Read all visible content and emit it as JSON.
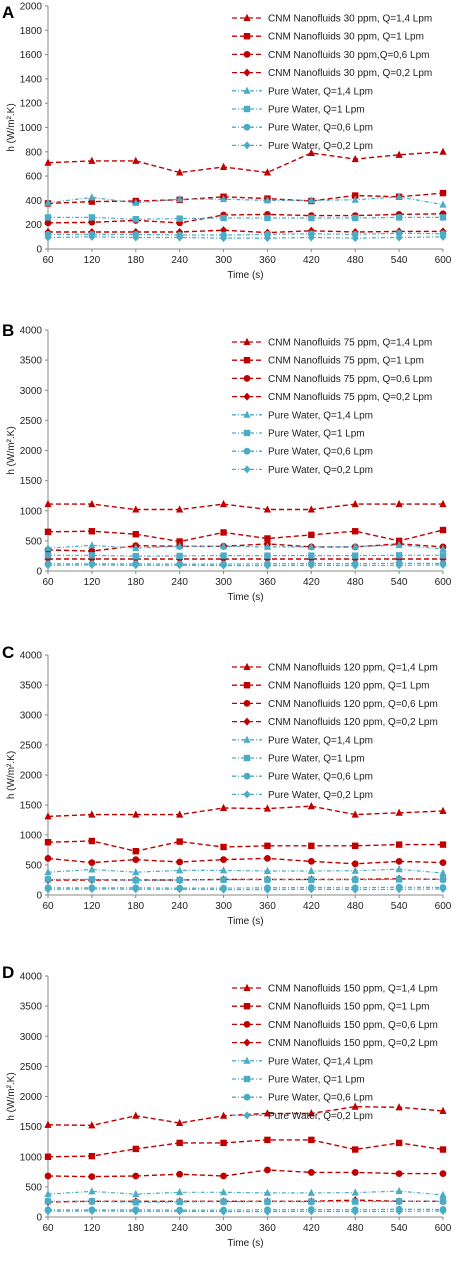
{
  "figure": {
    "colors": {
      "cnm": "#c00000",
      "water": "#4bacc6"
    }
  },
  "chart_data": [
    {
      "panel": "A",
      "type": "line",
      "x": [
        60,
        120,
        180,
        240,
        300,
        360,
        420,
        480,
        540,
        600
      ],
      "xlabel": "Time (s)",
      "ylabel": "h (W/m².K)",
      "ylim": [
        0,
        2000
      ],
      "yticks": [
        0,
        200,
        400,
        600,
        800,
        1000,
        1200,
        1400,
        1600,
        1800,
        2000
      ],
      "grid": false,
      "legend": "top-right",
      "series": [
        {
          "name": "CNM Nanofluids 30 ppm, Q=1,4 Lpm",
          "group": "cnm",
          "marker": "triangle",
          "values": [
            710,
            725,
            725,
            630,
            675,
            630,
            790,
            740,
            775,
            800
          ]
        },
        {
          "name": "CNM Nanofluids 30 ppm, Q=1 Lpm",
          "group": "cnm",
          "marker": "square",
          "values": [
            375,
            390,
            395,
            405,
            430,
            415,
            395,
            440,
            430,
            460
          ]
        },
        {
          "name": "CNM Nanofluids 30 ppm,Q=0,6 Lpm",
          "group": "cnm",
          "marker": "circle",
          "values": [
            215,
            220,
            235,
            215,
            280,
            285,
            275,
            275,
            285,
            290
          ]
        },
        {
          "name": "CNM Nanofluids 30 ppm, Q=0,2 Lpm",
          "group": "cnm",
          "marker": "diamond",
          "values": [
            140,
            140,
            140,
            140,
            155,
            135,
            150,
            140,
            145,
            145
          ]
        },
        {
          "name": "Pure Water, Q=1,4 Lpm",
          "group": "water",
          "marker": "triangle",
          "values": [
            380,
            425,
            380,
            410,
            410,
            400,
            400,
            405,
            430,
            365
          ]
        },
        {
          "name": "Pure Water, Q=1 Lpm",
          "group": "water",
          "marker": "square",
          "values": [
            260,
            260,
            245,
            250,
            255,
            255,
            255,
            255,
            260,
            260
          ]
        },
        {
          "name": "Pure Water, Q=0,6 Lpm",
          "group": "water",
          "marker": "circle",
          "values": [
            120,
            120,
            120,
            115,
            115,
            120,
            125,
            120,
            130,
            125
          ]
        },
        {
          "name": "Pure Water, Q=0,2 Lpm",
          "group": "water",
          "marker": "diamond",
          "values": [
            95,
            100,
            95,
            95,
            90,
            90,
            95,
            90,
            95,
            100
          ]
        }
      ]
    },
    {
      "panel": "B",
      "type": "line",
      "x": [
        60,
        120,
        180,
        240,
        300,
        360,
        420,
        480,
        540,
        600
      ],
      "xlabel": "Time (s)",
      "ylabel": "h (W/m².K)",
      "ylim": [
        0,
        4000
      ],
      "yticks": [
        0,
        500,
        1000,
        1500,
        2000,
        2500,
        3000,
        3500,
        4000
      ],
      "grid": false,
      "legend": "top-right",
      "series": [
        {
          "name": "CNM Nanofluids 75 ppm, Q=1,4 Lpm",
          "group": "cnm",
          "marker": "triangle",
          "values": [
            1110,
            1110,
            1020,
            1020,
            1110,
            1020,
            1020,
            1110,
            1110,
            1110
          ]
        },
        {
          "name": "CNM Nanofluids 75 ppm, Q=1 Lpm",
          "group": "cnm",
          "marker": "square",
          "values": [
            650,
            660,
            610,
            490,
            640,
            540,
            600,
            660,
            500,
            680
          ]
        },
        {
          "name": "CNM Nanofluids 75 ppm, Q=0,6 Lpm",
          "group": "cnm",
          "marker": "circle",
          "values": [
            350,
            330,
            420,
            410,
            410,
            450,
            400,
            400,
            450,
            400
          ]
        },
        {
          "name": "CNM Nanofluids 75 ppm, Q=0,2 Lpm",
          "group": "cnm",
          "marker": "diamond",
          "values": [
            200,
            200,
            200,
            200,
            200,
            200,
            200,
            200,
            200,
            200
          ]
        },
        {
          "name": "Pure Water, Q=1,4 Lpm",
          "group": "water",
          "marker": "triangle",
          "values": [
            380,
            425,
            380,
            410,
            410,
            400,
            400,
            405,
            430,
            365
          ]
        },
        {
          "name": "Pure Water, Q=1 Lpm",
          "group": "water",
          "marker": "square",
          "values": [
            260,
            260,
            245,
            250,
            255,
            255,
            255,
            255,
            260,
            260
          ]
        },
        {
          "name": "Pure Water, Q=0,6 Lpm",
          "group": "water",
          "marker": "circle",
          "values": [
            120,
            120,
            120,
            115,
            115,
            120,
            125,
            120,
            130,
            125
          ]
        },
        {
          "name": "Pure Water, Q=0,2 Lpm",
          "group": "water",
          "marker": "diamond",
          "values": [
            95,
            100,
            95,
            95,
            90,
            90,
            95,
            90,
            95,
            100
          ]
        }
      ]
    },
    {
      "panel": "C",
      "type": "line",
      "x": [
        60,
        120,
        180,
        240,
        300,
        360,
        420,
        480,
        540,
        600
      ],
      "xlabel": "Time (s)",
      "ylabel": "h (W/m².K)",
      "ylim": [
        0,
        4000
      ],
      "yticks": [
        0,
        500,
        1000,
        1500,
        2000,
        2500,
        3000,
        3500,
        4000
      ],
      "grid": false,
      "legend": "top-right",
      "series": [
        {
          "name": "CNM Nanofluids 120 ppm, Q=1,4 Lpm",
          "group": "cnm",
          "marker": "triangle",
          "values": [
            1310,
            1340,
            1340,
            1340,
            1450,
            1440,
            1480,
            1340,
            1370,
            1400
          ]
        },
        {
          "name": "CNM Nanofluids 120 ppm, Q=1 Lpm",
          "group": "cnm",
          "marker": "square",
          "values": [
            880,
            900,
            730,
            890,
            800,
            820,
            820,
            820,
            840,
            840
          ]
        },
        {
          "name": "CNM Nanofluids 120 ppm, Q=0,6 Lpm",
          "group": "cnm",
          "marker": "circle",
          "values": [
            610,
            540,
            590,
            550,
            590,
            610,
            560,
            520,
            560,
            540
          ]
        },
        {
          "name": "CNM Nanofluids 120 ppm, Q=0,2 Lpm",
          "group": "cnm",
          "marker": "diamond",
          "values": [
            250,
            250,
            250,
            250,
            260,
            260,
            260,
            260,
            270,
            260
          ]
        },
        {
          "name": "Pure Water, Q=1,4 Lpm",
          "group": "water",
          "marker": "triangle",
          "values": [
            380,
            425,
            380,
            410,
            410,
            400,
            400,
            405,
            430,
            365
          ]
        },
        {
          "name": "Pure Water, Q=1 Lpm",
          "group": "water",
          "marker": "square",
          "values": [
            260,
            260,
            245,
            250,
            255,
            255,
            255,
            255,
            260,
            260
          ]
        },
        {
          "name": "Pure Water, Q=0,6 Lpm",
          "group": "water",
          "marker": "circle",
          "values": [
            120,
            120,
            120,
            115,
            115,
            120,
            125,
            120,
            130,
            125
          ]
        },
        {
          "name": "Pure Water, Q=0,2 Lpm",
          "group": "water",
          "marker": "diamond",
          "values": [
            95,
            100,
            95,
            95,
            90,
            90,
            95,
            90,
            95,
            100
          ]
        }
      ]
    },
    {
      "panel": "D",
      "type": "line",
      "x": [
        60,
        120,
        180,
        240,
        300,
        360,
        420,
        480,
        540,
        600
      ],
      "xlabel": "Time (s)",
      "ylabel": "h (W/m².K)",
      "ylim": [
        0,
        4000
      ],
      "yticks": [
        0,
        500,
        1000,
        1500,
        2000,
        2500,
        3000,
        3500,
        4000
      ],
      "grid": false,
      "legend": "top-right",
      "series": [
        {
          "name": "CNM Nanofluids 150 ppm, Q=1,4 Lpm",
          "group": "cnm",
          "marker": "triangle",
          "values": [
            1530,
            1520,
            1680,
            1560,
            1680,
            1720,
            1720,
            1830,
            1820,
            1760
          ]
        },
        {
          "name": "CNM Nanofluids 150 ppm, Q=1 Lpm",
          "group": "cnm",
          "marker": "square",
          "values": [
            1000,
            1010,
            1130,
            1230,
            1230,
            1280,
            1280,
            1120,
            1230,
            1120
          ]
        },
        {
          "name": "CNM Nanofluids 150 ppm, Q=0,6 Lpm",
          "group": "cnm",
          "marker": "circle",
          "values": [
            680,
            670,
            680,
            710,
            680,
            780,
            740,
            740,
            720,
            720
          ]
        },
        {
          "name": "CNM Nanofluids 150 ppm, Q=0,2 Lpm",
          "group": "cnm",
          "marker": "diamond",
          "values": [
            250,
            260,
            260,
            260,
            260,
            260,
            260,
            280,
            260,
            260
          ]
        },
        {
          "name": "Pure Water, Q=1,4 Lpm",
          "group": "water",
          "marker": "triangle",
          "values": [
            380,
            425,
            380,
            410,
            410,
            400,
            400,
            405,
            430,
            365
          ]
        },
        {
          "name": "Pure Water, Q=1 Lpm",
          "group": "water",
          "marker": "square",
          "values": [
            260,
            260,
            245,
            250,
            255,
            255,
            255,
            255,
            260,
            260
          ]
        },
        {
          "name": "Pure Water, Q=0,6 Lpm",
          "group": "water",
          "marker": "circle",
          "values": [
            120,
            120,
            120,
            115,
            115,
            120,
            125,
            120,
            130,
            125
          ]
        },
        {
          "name": "Pure Water, Q=0,2 Lpm",
          "group": "water",
          "marker": "diamond",
          "values": [
            95,
            100,
            95,
            95,
            90,
            90,
            95,
            90,
            95,
            100
          ]
        }
      ]
    }
  ]
}
